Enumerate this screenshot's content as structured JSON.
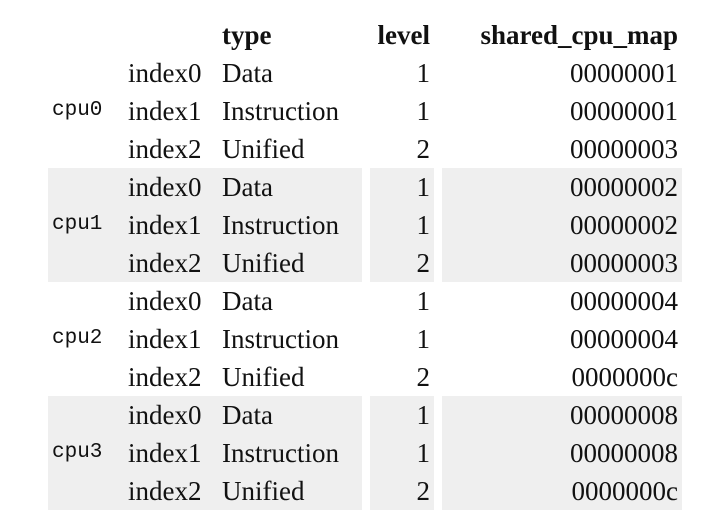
{
  "headers": {
    "type": "type",
    "level": "level",
    "map": "shared_cpu_map"
  },
  "groups": [
    {
      "cpu": "cpu0",
      "shaded": false,
      "rows": [
        {
          "index": "index0",
          "type": "Data",
          "level": "1",
          "map": "00000001"
        },
        {
          "index": "index1",
          "type": "Instruction",
          "level": "1",
          "map": "00000001"
        },
        {
          "index": "index2",
          "type": "Unified",
          "level": "2",
          "map": "00000003"
        }
      ]
    },
    {
      "cpu": "cpu1",
      "shaded": true,
      "rows": [
        {
          "index": "index0",
          "type": "Data",
          "level": "1",
          "map": "00000002"
        },
        {
          "index": "index1",
          "type": "Instruction",
          "level": "1",
          "map": "00000002"
        },
        {
          "index": "index2",
          "type": "Unified",
          "level": "2",
          "map": "00000003"
        }
      ]
    },
    {
      "cpu": "cpu2",
      "shaded": false,
      "rows": [
        {
          "index": "index0",
          "type": "Data",
          "level": "1",
          "map": "00000004"
        },
        {
          "index": "index1",
          "type": "Instruction",
          "level": "1",
          "map": "00000004"
        },
        {
          "index": "index2",
          "type": "Unified",
          "level": "2",
          "map": "0000000c"
        }
      ]
    },
    {
      "cpu": "cpu3",
      "shaded": true,
      "rows": [
        {
          "index": "index0",
          "type": "Data",
          "level": "1",
          "map": "00000008"
        },
        {
          "index": "index1",
          "type": "Instruction",
          "level": "1",
          "map": "00000008"
        },
        {
          "index": "index2",
          "type": "Unified",
          "level": "2",
          "map": "0000000c"
        }
      ]
    }
  ],
  "colors": {
    "shade": "#efefef",
    "text": "#111111",
    "background": "#ffffff"
  }
}
